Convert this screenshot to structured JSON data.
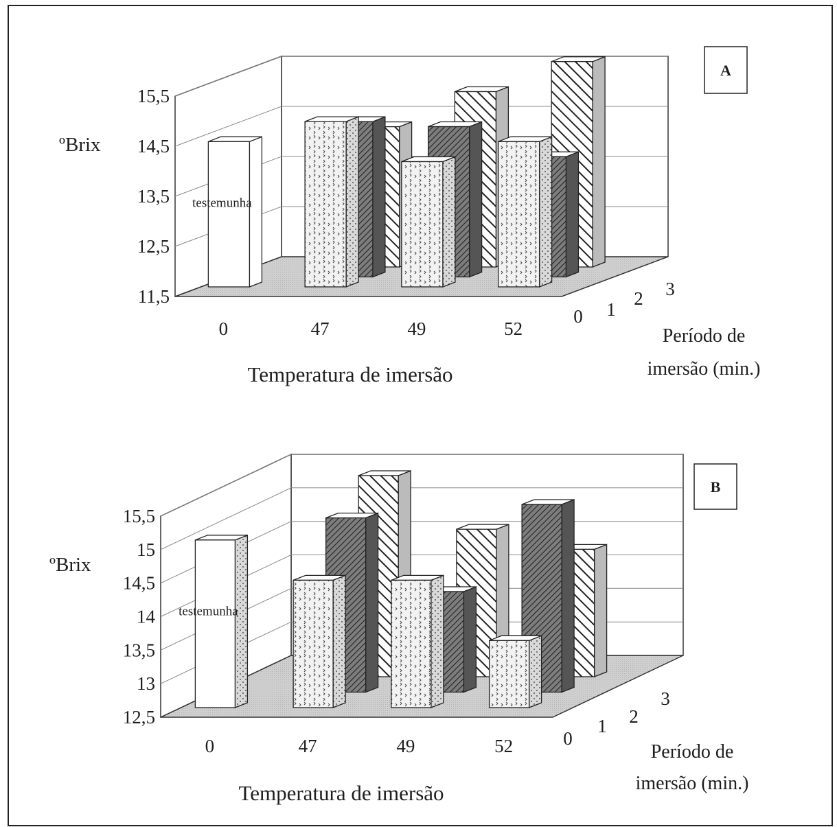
{
  "chart_data": [
    {
      "type": "bar",
      "panel_label": "A",
      "ylabel": "ºBrix",
      "xlabel": "Temperatura de imersão",
      "zlabel_line1": "Período de",
      "zlabel_line2": "imersão (min.)",
      "x_categories": [
        "0",
        "47",
        "49",
        "52"
      ],
      "z_categories": [
        "0",
        "1",
        "2",
        "3"
      ],
      "y_ticks": [
        "11,5",
        "12,5",
        "13,5",
        "14,5",
        "15,5"
      ],
      "ylim": [
        11.5,
        15.5
      ],
      "control_label": "testemunha",
      "control_value": 14.4,
      "series": [
        {
          "period": "1",
          "values": [
            null,
            14.8,
            14.0,
            14.4
          ]
        },
        {
          "period": "2",
          "values": [
            null,
            14.6,
            14.5,
            13.9
          ]
        },
        {
          "period": "3",
          "values": [
            null,
            14.3,
            15.0,
            15.6
          ]
        }
      ],
      "grid": true
    },
    {
      "type": "bar",
      "panel_label": "B",
      "ylabel": "ºBrix",
      "xlabel": "Temperatura de imersão",
      "zlabel_line1": "Período de",
      "zlabel_line2": "imersão (min.)",
      "x_categories": [
        "0",
        "47",
        "49",
        "52"
      ],
      "z_categories": [
        "0",
        "1",
        "2",
        "3"
      ],
      "y_ticks": [
        "12,5",
        "13",
        "13,5",
        "14",
        "14,5",
        "15",
        "15,5"
      ],
      "ylim": [
        12.5,
        15.5
      ],
      "control_label": "testemunha",
      "control_value": 15.0,
      "series": [
        {
          "period": "1",
          "values": [
            null,
            14.4,
            14.4,
            13.5
          ]
        },
        {
          "period": "2",
          "values": [
            null,
            15.1,
            14.0,
            15.3
          ]
        },
        {
          "period": "3",
          "values": [
            null,
            15.5,
            14.7,
            14.4
          ]
        }
      ],
      "grid": true
    }
  ]
}
